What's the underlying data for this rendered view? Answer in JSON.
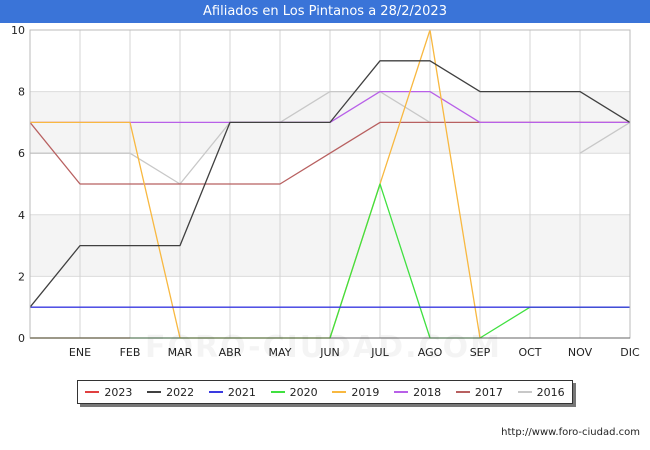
{
  "title": "Afiliados en Los Pintanos a 28/2/2023",
  "source": "http://www.foro-ciudad.com",
  "watermark": "FORO-CIUDAD.COM",
  "chart_data": {
    "type": "line",
    "categories": [
      "",
      "ENE",
      "FEB",
      "MAR",
      "ABR",
      "MAY",
      "JUN",
      "JUL",
      "AGO",
      "SEP",
      "OCT",
      "NOV",
      "DIC"
    ],
    "ylim": [
      0,
      10
    ],
    "yticks": [
      0,
      2,
      4,
      6,
      8,
      10
    ],
    "grid": true,
    "legend_position": "bottom",
    "series": [
      {
        "name": "2023",
        "color": "#e04040",
        "values": [
          0,
          0,
          0,
          null,
          null,
          null,
          null,
          null,
          null,
          null,
          null,
          null,
          null
        ]
      },
      {
        "name": "2022",
        "color": "#404040",
        "values": [
          1,
          3,
          3,
          3,
          7,
          7,
          7,
          9,
          9,
          8,
          8,
          8,
          7
        ]
      },
      {
        "name": "2021",
        "color": "#3a3ae0",
        "values": [
          1,
          1,
          1,
          1,
          1,
          1,
          1,
          1,
          1,
          1,
          1,
          1,
          1
        ]
      },
      {
        "name": "2020",
        "color": "#40e040",
        "values": [
          0,
          0,
          0,
          0,
          0,
          0,
          0,
          5,
          0,
          0,
          1,
          1,
          1
        ]
      },
      {
        "name": "2019",
        "color": "#f8b840",
        "values": [
          7,
          7,
          7,
          0,
          0,
          0,
          0,
          5,
          10,
          0,
          null,
          null,
          null
        ]
      },
      {
        "name": "2018",
        "color": "#b860e8",
        "values": [
          7,
          7,
          7,
          7,
          7,
          7,
          7,
          8,
          8,
          7,
          7,
          7,
          7
        ]
      },
      {
        "name": "2017",
        "color": "#b86060",
        "values": [
          7,
          5,
          5,
          5,
          5,
          5,
          6,
          7,
          7,
          7,
          7,
          7,
          7
        ]
      },
      {
        "name": "2016",
        "color": "#c8c8c8",
        "values": [
          6,
          6,
          6,
          5,
          7,
          7,
          8,
          8,
          7,
          null,
          null,
          6,
          7
        ]
      }
    ]
  }
}
